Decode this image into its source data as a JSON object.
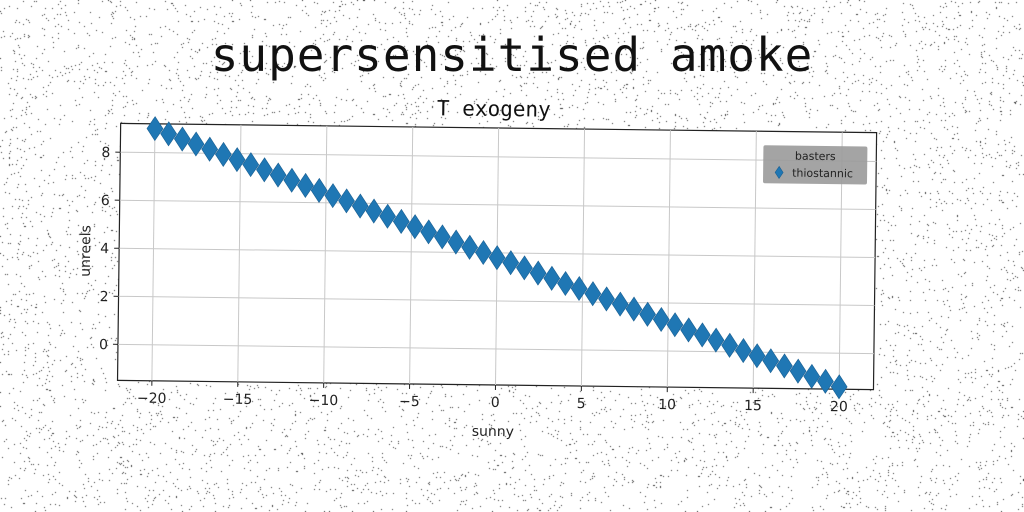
{
  "suptitle": "supersensitised amoke",
  "colors": {
    "series": "#1f77b4",
    "grid": "#c8c8c8",
    "legend_bg": "#9a9a9a"
  },
  "chart_data": {
    "type": "scatter",
    "title": "T exogeny",
    "xlabel": "sunny",
    "ylabel": "unreels",
    "xlim": [
      -22,
      22
    ],
    "ylim": [
      -1.5,
      9.2
    ],
    "xticks": [
      -20,
      -15,
      -10,
      -5,
      0,
      5,
      10,
      15,
      20
    ],
    "yticks": [
      0,
      2,
      4,
      6,
      8
    ],
    "xtick_labels": [
      "−20",
      "−15",
      "−10",
      "−5",
      "0",
      "5",
      "10",
      "15",
      "20"
    ],
    "ytick_labels": [
      "0",
      "2",
      "4",
      "6",
      "8"
    ],
    "grid": true,
    "marker": "diamond",
    "legend": {
      "title": "basters",
      "placement": "top-right",
      "entries": [
        "thiostannic"
      ]
    },
    "series": [
      {
        "name": "thiostannic",
        "x": [
          -20,
          -19.2,
          -18.4,
          -17.6,
          -16.8,
          -16,
          -15.2,
          -14.4,
          -13.6,
          -12.8,
          -12,
          -11.2,
          -10.4,
          -9.6,
          -8.8,
          -8,
          -7.2,
          -6.4,
          -5.6,
          -4.8,
          -4,
          -3.2,
          -2.4,
          -1.6,
          -0.8,
          0,
          0.8,
          1.6,
          2.4,
          3.2,
          4,
          4.8,
          5.6,
          6.4,
          7.2,
          8,
          8.8,
          9.6,
          10.4,
          11.2,
          12,
          12.8,
          13.6,
          14.4,
          15.2,
          16,
          16.8,
          17.6,
          18.4,
          19.2,
          20
        ],
        "y": [
          9.0,
          8.79,
          8.58,
          8.38,
          8.17,
          7.96,
          7.75,
          7.55,
          7.34,
          7.13,
          6.92,
          6.71,
          6.51,
          6.3,
          6.09,
          5.88,
          5.68,
          5.47,
          5.26,
          5.05,
          4.84,
          4.64,
          4.43,
          4.22,
          4.01,
          3.8,
          3.6,
          3.39,
          3.18,
          2.97,
          2.76,
          2.56,
          2.35,
          2.14,
          1.93,
          1.73,
          1.52,
          1.31,
          1.1,
          0.89,
          0.69,
          0.48,
          0.27,
          0.06,
          -0.15,
          -0.35,
          -0.56,
          -0.77,
          -0.98,
          -1.18,
          -1.4
        ]
      }
    ]
  }
}
